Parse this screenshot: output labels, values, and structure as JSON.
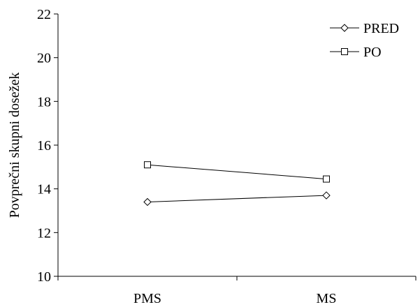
{
  "chart_data": {
    "type": "line",
    "title": "",
    "xlabel": "",
    "ylabel": "Povprečni skupni dosežek",
    "categories": [
      "PMS",
      "MS"
    ],
    "ylim": [
      10,
      22
    ],
    "yticks": [
      10,
      12,
      14,
      16,
      18,
      20,
      22
    ],
    "grid": false,
    "legend_position": "top-right",
    "series": [
      {
        "name": "PRED",
        "marker": "diamond",
        "color": "#000000",
        "values": [
          13.4,
          13.7
        ]
      },
      {
        "name": "PO",
        "marker": "square",
        "color": "#000000",
        "values": [
          15.1,
          14.45
        ]
      }
    ]
  }
}
